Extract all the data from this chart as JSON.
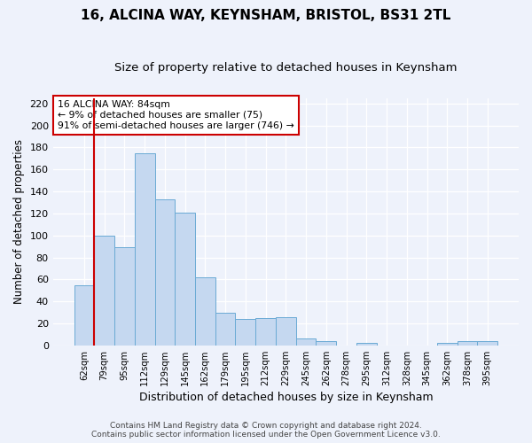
{
  "title": "16, ALCINA WAY, KEYNSHAM, BRISTOL, BS31 2TL",
  "subtitle": "Size of property relative to detached houses in Keynsham",
  "xlabel": "Distribution of detached houses by size in Keynsham",
  "ylabel": "Number of detached properties",
  "categories": [
    "62sqm",
    "79sqm",
    "95sqm",
    "112sqm",
    "129sqm",
    "145sqm",
    "162sqm",
    "179sqm",
    "195sqm",
    "212sqm",
    "229sqm",
    "245sqm",
    "262sqm",
    "278sqm",
    "295sqm",
    "312sqm",
    "328sqm",
    "345sqm",
    "362sqm",
    "378sqm",
    "395sqm"
  ],
  "values": [
    55,
    100,
    89,
    175,
    133,
    121,
    62,
    30,
    24,
    25,
    26,
    6,
    4,
    0,
    2,
    0,
    0,
    0,
    2,
    4,
    4
  ],
  "bar_color": "#c5d8f0",
  "bar_edge_color": "#6aaad4",
  "vline_color": "#cc0000",
  "ylim": [
    0,
    225
  ],
  "yticks": [
    0,
    20,
    40,
    60,
    80,
    100,
    120,
    140,
    160,
    180,
    200,
    220
  ],
  "annotation_title": "16 ALCINA WAY: 84sqm",
  "annotation_line1": "← 9% of detached houses are smaller (75)",
  "annotation_line2": "91% of semi-detached houses are larger (746) →",
  "annotation_box_color": "#cc0000",
  "footer1": "Contains HM Land Registry data © Crown copyright and database right 2024.",
  "footer2": "Contains public sector information licensed under the Open Government Licence v3.0.",
  "bg_color": "#eef2fb",
  "grid_color": "#ffffff",
  "title_fontsize": 11,
  "subtitle_fontsize": 9.5,
  "vline_bar_index": 1
}
